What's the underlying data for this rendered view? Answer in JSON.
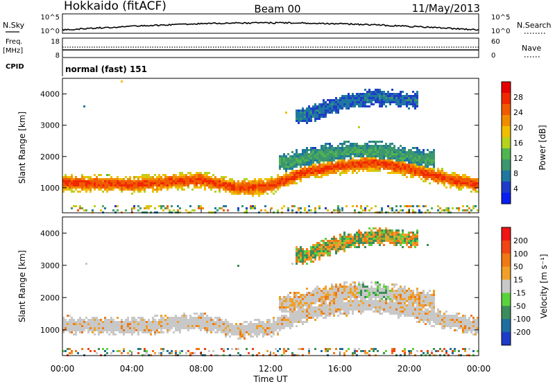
{
  "header": {
    "site": "Hokkaido (fitACF)",
    "beam": "Beam 00",
    "date": "11/May/2013"
  },
  "summary": {
    "nsky_label": "N.Sky",
    "nsky_ticks": [
      "10^5",
      "10^0"
    ],
    "nsearch_label": "N.Search",
    "freq_label": "Freq.",
    "freq_unit": "[MHz]",
    "freq_ticks": [
      "18",
      "8"
    ],
    "nave_ticks": [
      "60",
      "0"
    ],
    "nave_label": "Nave",
    "cpid_label": "CPID",
    "cpid_value": "normal (fast) 151"
  },
  "colors": {
    "power_scale": [
      "#0a1ef0",
      "#1e3cc8",
      "#1e78a0",
      "#3c966e",
      "#50b450",
      "#b4d21e",
      "#f0be00",
      "#f08c00",
      "#f05a00",
      "#f02800",
      "#e60000"
    ],
    "velocity_scale": [
      "#1e3cc8",
      "#1e6ea0",
      "#3c8c5a",
      "#5ad23c",
      "#c8c8c8",
      "#c8c8c8",
      "#f0a028",
      "#f07814",
      "#f04614",
      "#f01414"
    ]
  },
  "chart_data": [
    {
      "type": "heatmap",
      "name": "power",
      "xlabel": "Time UT",
      "ylabel": "Slant Range [km]",
      "x_ticks": [
        "00:00",
        "04:00",
        "08:00",
        "12:00",
        "16:00",
        "20:00",
        "00:00"
      ],
      "xlim": [
        0,
        24
      ],
      "y_ticks": [
        1000,
        2000,
        3000,
        4000
      ],
      "ylim": [
        200,
        4500
      ],
      "colorbar": {
        "label": "Power [dB]",
        "ticks": [
          "28",
          "24",
          "20",
          "16",
          "12",
          "8",
          "4"
        ],
        "range": [
          0,
          30
        ]
      },
      "bands": [
        {
          "range_km": 1150,
          "hours": [
            0,
            4,
            8,
            10,
            12,
            14,
            16,
            18,
            20,
            22,
            24
          ],
          "center_km": [
            1150,
            1100,
            1250,
            1000,
            1050,
            1500,
            1700,
            1800,
            1600,
            1300,
            1100
          ],
          "width_km": 300,
          "power_db": 26
        },
        {
          "range_km": 2000,
          "hours": [
            13,
            15,
            17,
            19,
            21
          ],
          "center_km": [
            1800,
            2050,
            2200,
            2100,
            1900
          ],
          "width_km": 350,
          "power_db": 10
        },
        {
          "range_km": 3800,
          "hours": [
            14,
            16,
            18,
            20
          ],
          "center_km": [
            3300,
            3700,
            3900,
            3800
          ],
          "width_km": 300,
          "power_db": 6
        }
      ]
    },
    {
      "type": "heatmap",
      "name": "velocity",
      "xlabel": "Time UT",
      "ylabel": "Slant Range [km]",
      "x_ticks": [
        "00:00",
        "04:00",
        "08:00",
        "12:00",
        "16:00",
        "20:00",
        "00:00"
      ],
      "xlim": [
        0,
        24
      ],
      "y_ticks": [
        1000,
        2000,
        3000,
        4000
      ],
      "ylim": [
        200,
        4500
      ],
      "colorbar": {
        "label": "Velocity [m s⁻¹]",
        "ticks": [
          "200",
          "100",
          "50",
          "15",
          "-15",
          "-50",
          "-100",
          "-200"
        ],
        "range": [
          -250,
          250
        ]
      }
    }
  ]
}
